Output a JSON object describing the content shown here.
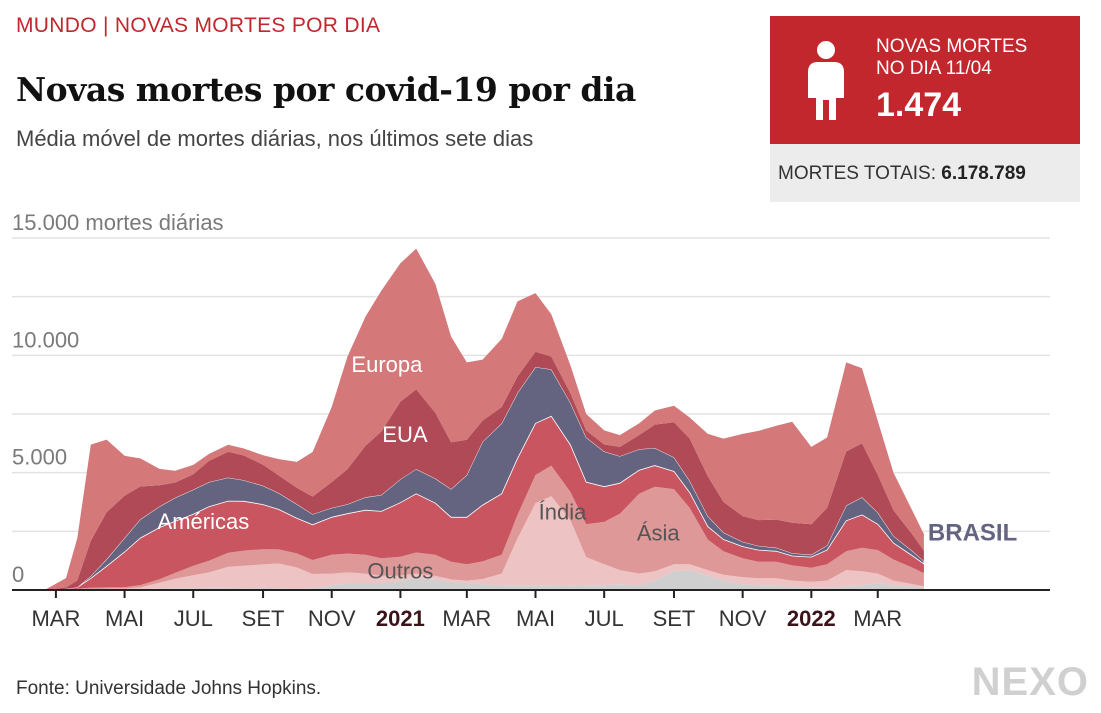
{
  "header": {
    "kicker": "MUNDO | NOVAS MORTES POR DIA",
    "title": "Novas mortes por covid-19 por dia",
    "subtitle": "Média móvel de mortes diárias, nos últimos sete dias"
  },
  "card": {
    "label_line1": "NOVAS MORTES",
    "label_line2": "NO DIA 11/04",
    "value": "1.474",
    "total_label": "MORTES TOTAIS:",
    "total_value": "6.178.789",
    "icon": "person-icon"
  },
  "footer": {
    "source": "Fonte: Universidade Johns Hopkins.",
    "logo": "NEXO"
  },
  "colors": {
    "accent": "#c1272d",
    "europa": "#d4787a",
    "eua": "#b04a57",
    "brasil": "#646480",
    "americas": "#c85560",
    "india": "#edc3c3",
    "asia": "#de9898",
    "outros": "#cfcfcf"
  },
  "chart_data": {
    "type": "area",
    "stacked": true,
    "ylim": [
      0,
      15000
    ],
    "yticks": [
      {
        "value": 0,
        "label": "0"
      },
      {
        "value": 5000,
        "label": "5.000"
      },
      {
        "value": 10000,
        "label": "10.000"
      },
      {
        "value": 15000,
        "label": "15.000 mortes diárias"
      }
    ],
    "x_start": "2020-01-22",
    "x_end": "2022-04-11",
    "x_axis_end": "2022-08-01",
    "xticks": [
      {
        "date": "2020-03-01",
        "label": "MAR",
        "bold": false
      },
      {
        "date": "2020-05-01",
        "label": "MAI",
        "bold": false
      },
      {
        "date": "2020-07-01",
        "label": "JUL",
        "bold": false
      },
      {
        "date": "2020-09-01",
        "label": "SET",
        "bold": false
      },
      {
        "date": "2020-11-01",
        "label": "NOV",
        "bold": false
      },
      {
        "date": "2021-01-01",
        "label": "2021",
        "bold": true
      },
      {
        "date": "2021-03-01",
        "label": "MAR",
        "bold": false
      },
      {
        "date": "2021-05-01",
        "label": "MAI",
        "bold": false
      },
      {
        "date": "2021-07-01",
        "label": "JUL",
        "bold": false
      },
      {
        "date": "2021-09-01",
        "label": "SET",
        "bold": false
      },
      {
        "date": "2021-11-01",
        "label": "NOV",
        "bold": false
      },
      {
        "date": "2022-01-01",
        "label": "2022",
        "bold": true
      },
      {
        "date": "2022-03-01",
        "label": "MAR",
        "bold": false
      }
    ],
    "dates": [
      "2020-02-20",
      "2020-03-10",
      "2020-03-20",
      "2020-04-01",
      "2020-04-15",
      "2020-05-01",
      "2020-05-15",
      "2020-06-01",
      "2020-06-15",
      "2020-07-01",
      "2020-07-15",
      "2020-08-01",
      "2020-08-15",
      "2020-09-01",
      "2020-09-15",
      "2020-10-01",
      "2020-10-15",
      "2020-11-01",
      "2020-11-15",
      "2020-12-01",
      "2020-12-15",
      "2021-01-01",
      "2021-01-15",
      "2021-02-01",
      "2021-02-15",
      "2021-03-01",
      "2021-03-15",
      "2021-04-01",
      "2021-04-15",
      "2021-05-01",
      "2021-05-15",
      "2021-06-01",
      "2021-06-15",
      "2021-07-01",
      "2021-07-15",
      "2021-08-01",
      "2021-08-15",
      "2021-09-01",
      "2021-09-15",
      "2021-10-01",
      "2021-10-15",
      "2021-11-01",
      "2021-11-15",
      "2021-12-01",
      "2021-12-15",
      "2022-01-01",
      "2022-01-15",
      "2022-02-01",
      "2022-02-15",
      "2022-03-01",
      "2022-03-15",
      "2022-04-01",
      "2022-04-11"
    ],
    "series": [
      {
        "name": "Outros",
        "values": [
          0,
          5,
          10,
          30,
          40,
          30,
          30,
          60,
          80,
          80,
          100,
          90,
          80,
          90,
          80,
          60,
          80,
          200,
          300,
          300,
          300,
          400,
          500,
          450,
          350,
          300,
          250,
          200,
          200,
          200,
          200,
          180,
          200,
          200,
          250,
          200,
          400,
          800,
          850,
          600,
          400,
          250,
          200,
          200,
          150,
          100,
          100,
          150,
          200,
          300,
          200,
          150,
          100
        ]
      },
      {
        "name": "Índia",
        "values": [
          0,
          0,
          0,
          5,
          10,
          30,
          80,
          250,
          400,
          550,
          650,
          900,
          950,
          1000,
          1050,
          900,
          600,
          500,
          450,
          400,
          300,
          220,
          200,
          150,
          100,
          100,
          220,
          500,
          2000,
          3500,
          3800,
          2800,
          1200,
          900,
          600,
          500,
          400,
          300,
          250,
          250,
          250,
          300,
          300,
          300,
          250,
          250,
          300,
          700,
          600,
          400,
          200,
          100,
          60
        ]
      },
      {
        "name": "Ásia",
        "values": [
          0,
          20,
          40,
          60,
          60,
          60,
          100,
          150,
          250,
          400,
          500,
          600,
          650,
          650,
          600,
          600,
          600,
          800,
          800,
          800,
          750,
          800,
          900,
          900,
          750,
          700,
          750,
          800,
          1000,
          1200,
          1300,
          1200,
          1400,
          1800,
          2400,
          3400,
          3600,
          3200,
          2400,
          1300,
          1000,
          800,
          700,
          700,
          650,
          600,
          700,
          800,
          1000,
          1000,
          900,
          700,
          550
        ]
      },
      {
        "name": "Américas",
        "values": [
          0,
          20,
          60,
          400,
          900,
          1500,
          2000,
          2200,
          2200,
          2200,
          2300,
          2200,
          2100,
          1900,
          1700,
          1500,
          1500,
          1600,
          1700,
          1900,
          2000,
          2300,
          2500,
          2200,
          1900,
          2000,
          2400,
          2600,
          2400,
          2200,
          2100,
          2000,
          1800,
          1500,
          1300,
          1000,
          900,
          750,
          650,
          550,
          500,
          500,
          500,
          450,
          400,
          450,
          600,
          1300,
          1400,
          1100,
          700,
          500,
          400
        ]
      },
      {
        "name": "BRASIL",
        "values": [
          0,
          0,
          0,
          100,
          300,
          600,
          800,
          900,
          1000,
          1050,
          1050,
          1000,
          900,
          800,
          700,
          600,
          450,
          400,
          400,
          550,
          700,
          1000,
          1050,
          1050,
          1200,
          1800,
          2700,
          3000,
          2800,
          2400,
          2000,
          1800,
          1900,
          1500,
          1150,
          900,
          750,
          600,
          500,
          450,
          300,
          200,
          180,
          150,
          120,
          100,
          200,
          650,
          750,
          500,
          300,
          200,
          120
        ]
      },
      {
        "name": "EUA",
        "values": [
          0,
          60,
          300,
          1500,
          2000,
          1800,
          1400,
          900,
          650,
          650,
          900,
          1100,
          1050,
          900,
          750,
          700,
          750,
          1100,
          1500,
          2200,
          2700,
          3300,
          3400,
          2800,
          2000,
          1500,
          900,
          700,
          700,
          650,
          550,
          400,
          300,
          300,
          400,
          600,
          1000,
          1500,
          1800,
          1700,
          1300,
          1100,
          1100,
          1200,
          1300,
          1300,
          1600,
          2300,
          2300,
          1600,
          1100,
          700,
          450
        ]
      },
      {
        "name": "Europa",
        "values": [
          0,
          400,
          1800,
          4100,
          3100,
          1700,
          1200,
          700,
          500,
          400,
          300,
          300,
          300,
          400,
          700,
          1100,
          1900,
          3200,
          4800,
          5500,
          6000,
          5900,
          6000,
          5500,
          4500,
          3300,
          2600,
          2900,
          3200,
          2500,
          1800,
          1200,
          700,
          600,
          500,
          500,
          600,
          700,
          900,
          1800,
          2700,
          3500,
          3800,
          4000,
          4300,
          3300,
          3000,
          3800,
          3200,
          2300,
          1600,
          1000,
          700
        ]
      }
    ],
    "label_positions": {
      "Europa": {
        "date": "2020-12-20",
        "value": 9300
      },
      "EUA": {
        "date": "2021-01-05",
        "value": 6300
      },
      "Américas": {
        "date": "2020-07-10",
        "value": 2600
      },
      "Índia": {
        "date": "2021-05-25",
        "value": 3000
      },
      "Ásia": {
        "date": "2021-08-18",
        "value": 2100
      },
      "Outros": {
        "date": "2021-01-01",
        "value": 500
      },
      "BRASIL": {
        "date": "2022-05-25",
        "value": 2100
      }
    }
  }
}
